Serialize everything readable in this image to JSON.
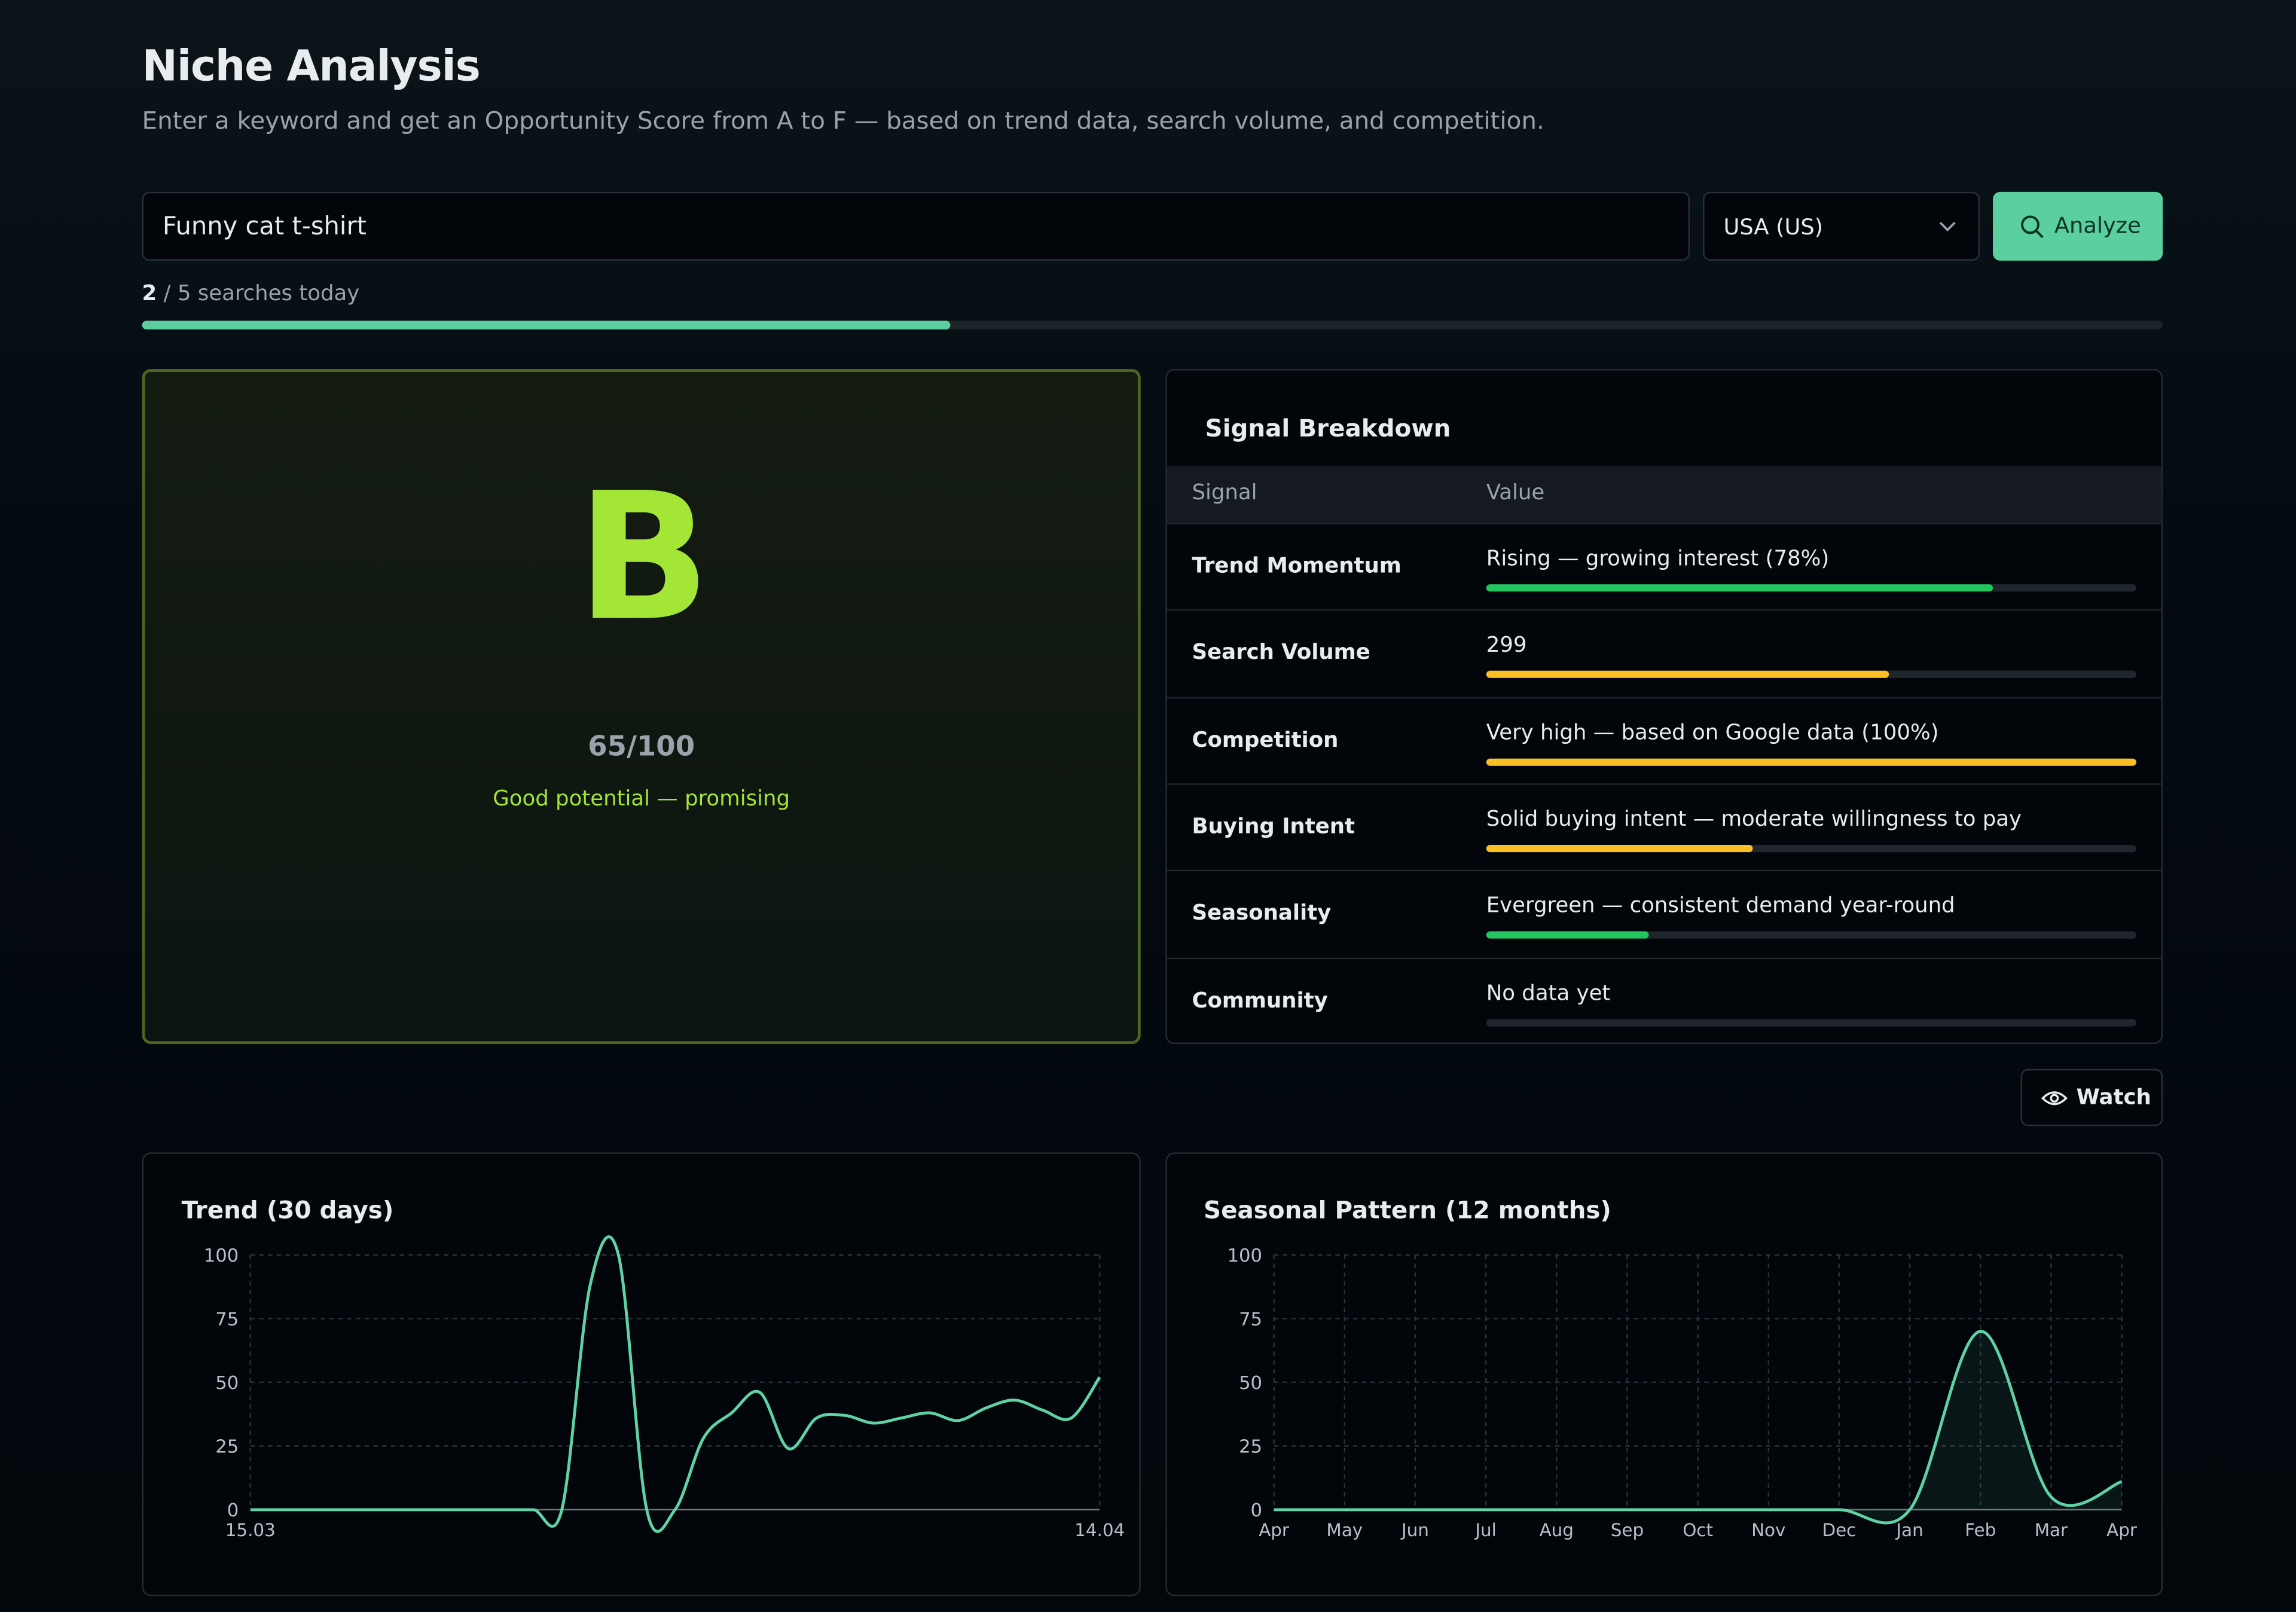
{
  "header": {
    "title": "Niche Analysis",
    "subtitle": "Enter a keyword and get an Opportunity Score from A to F — based on trend data, search volume, and competition."
  },
  "search": {
    "keyword": "Funny cat t-shirt",
    "country": "USA (US)",
    "button": "Analyze"
  },
  "usage": {
    "used": 2,
    "separator": "/",
    "limit": 5,
    "label": "searches today"
  },
  "score": {
    "grade": "B",
    "score": "65/100",
    "verdict": "Good potential — promising"
  },
  "signals": {
    "title": "Signal Breakdown",
    "columns": [
      "Signal",
      "Value"
    ],
    "rows": [
      {
        "signal": "Trend Momentum",
        "value": "Rising — growing interest (78%)",
        "level": 78,
        "color": "#22c55e"
      },
      {
        "signal": "Search Volume",
        "value": "299",
        "level": 62,
        "color": "#fbbf24"
      },
      {
        "signal": "Competition",
        "value": "Very high — based on Google data (100%)",
        "level": 100,
        "color": "#fbbf24"
      },
      {
        "signal": "Buying Intent",
        "value": "Solid buying intent — moderate willingness to pay",
        "level": 41,
        "color": "#fbbf24"
      },
      {
        "signal": "Seasonality",
        "value": "Evergreen — consistent demand year-round",
        "level": 25,
        "color": "#22c55e"
      },
      {
        "signal": "Community",
        "value": "No data yet",
        "level": 0,
        "color": "#22c55e"
      }
    ]
  },
  "watch": "Watch",
  "chart_data": [
    {
      "type": "line",
      "title": "Trend (30 days)",
      "categories": [
        "15.03",
        null,
        null,
        null,
        null,
        null,
        null,
        null,
        null,
        null,
        null,
        null,
        null,
        null,
        null,
        null,
        null,
        null,
        null,
        null,
        null,
        null,
        null,
        null,
        null,
        null,
        null,
        null,
        null,
        null,
        "14.04"
      ],
      "values": [
        0,
        0,
        0,
        0,
        0,
        0,
        0,
        0,
        0,
        0,
        0,
        0,
        88,
        100,
        0,
        0,
        28,
        38,
        46,
        24,
        36,
        37,
        34,
        36,
        38,
        35,
        40,
        43,
        39,
        36,
        52
      ],
      "color": "#5fd3a5",
      "ylim": [
        0,
        100
      ],
      "yticks": [
        0,
        25,
        50,
        75,
        100
      ],
      "grid": true
    },
    {
      "type": "area",
      "title": "Seasonal Pattern (12 months)",
      "categories": [
        "Apr",
        "May",
        "Jun",
        "Jul",
        "Aug",
        "Sep",
        "Oct",
        "Nov",
        "Dec",
        "Jan",
        "Feb",
        "Mar",
        "Apr"
      ],
      "values": [
        0,
        0,
        0,
        0,
        0,
        0,
        0,
        0,
        0,
        0,
        70,
        5,
        11
      ],
      "color": "#5fd3a5",
      "ylim": [
        0,
        100
      ],
      "yticks": [
        0,
        25,
        50,
        75,
        100
      ],
      "grid": true
    }
  ]
}
